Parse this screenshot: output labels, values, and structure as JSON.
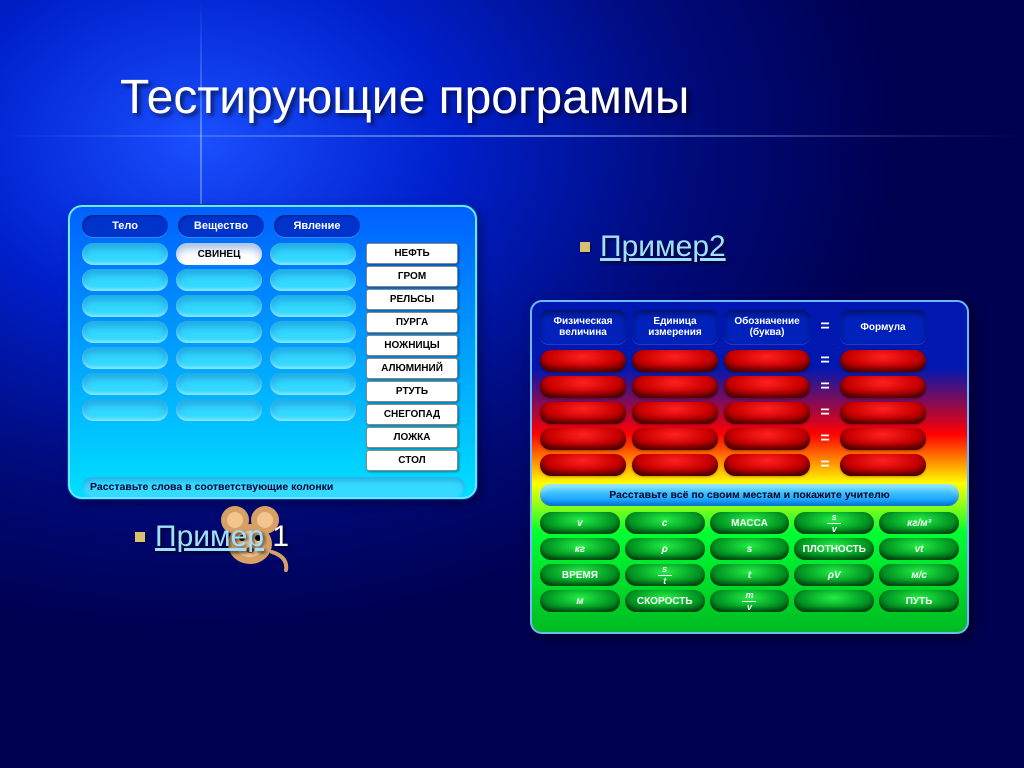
{
  "title": "Тестирующие программы",
  "caption1_link": "Пример",
  "caption1_rest": " 1",
  "caption2_link": "Пример2",
  "panel1": {
    "columns": [
      "Тело",
      "Вещество",
      "Явление"
    ],
    "slot_fill": {
      "col": 1,
      "row": 0,
      "text": "СВИНЕЦ"
    },
    "rows_per_column": 7,
    "tags": [
      "НЕФТЬ",
      "ГРОМ",
      "РЕЛЬСЫ",
      "ПУРГА",
      "НОЖНИЦЫ",
      "АЛЮМИНИЙ",
      "РТУТЬ",
      "СНЕГОПАД",
      "ЛОЖКА",
      "СТОЛ"
    ],
    "footer": "Расставьте слова в соответствующие колонки",
    "header_bg": "#0033cc",
    "slot_bg": "#33d9ff",
    "tag_bg": "#ffffff",
    "panel_border": "#6fe6ff"
  },
  "panel2": {
    "headers": [
      "Физическая величина",
      "Единица измерения",
      "Обозначение (буква)",
      "Формула"
    ],
    "eq": "=",
    "red_rows": 5,
    "banner": "Расставьте всё по своим местам и покажите учителю",
    "green_rows": [
      [
        {
          "t": "v",
          "i": true
        },
        {
          "t": "с",
          "i": true
        },
        {
          "t": "МАССА"
        },
        {
          "frac": [
            "s",
            "v"
          ]
        },
        {
          "t": "кг/м³",
          "i": true
        }
      ],
      [
        {
          "t": "кг",
          "i": true
        },
        {
          "t": "ρ",
          "i": true
        },
        {
          "t": "s",
          "i": true
        },
        {
          "t": "ПЛОТНОСТЬ"
        },
        {
          "t": "vt",
          "i": true
        }
      ],
      [
        {
          "t": "ВРЕМЯ"
        },
        {
          "frac": [
            "s",
            "t"
          ]
        },
        {
          "t": "t",
          "i": true
        },
        {
          "t": "ρV",
          "i": true
        },
        {
          "t": "м/с",
          "i": true
        }
      ],
      [
        {
          "t": "м",
          "i": true
        },
        {
          "t": "СКОРОСТЬ"
        },
        {
          "frac": [
            "m",
            "v"
          ]
        },
        {
          "t": ""
        },
        {
          "t": "ПУТЬ"
        }
      ]
    ],
    "colors": {
      "header_bg": "#0022bb",
      "red_grad": [
        "#ff2020",
        "#cc0000",
        "#660000"
      ],
      "green_grad": [
        "#22ee44",
        "#009522",
        "#004d10"
      ],
      "banner_grad": [
        "#66e0ff",
        "#0090ff"
      ]
    }
  }
}
